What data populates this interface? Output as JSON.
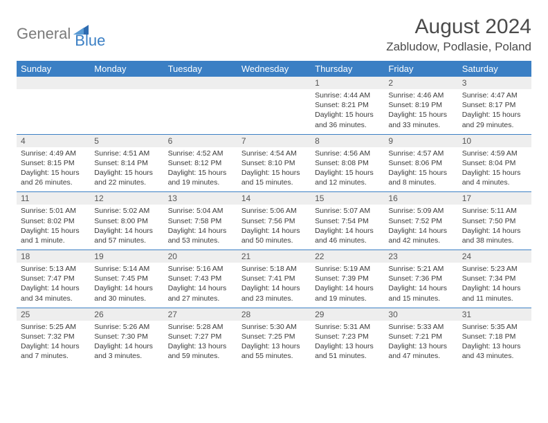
{
  "brand": {
    "part1": "General",
    "part2": "Blue",
    "accent": "#3b7fc4",
    "gray": "#7a7a7a"
  },
  "title": "August 2024",
  "location": "Zabludow, Podlasie, Poland",
  "weekdays": [
    "Sunday",
    "Monday",
    "Tuesday",
    "Wednesday",
    "Thursday",
    "Friday",
    "Saturday"
  ],
  "colors": {
    "header_bg": "#3b7fc4",
    "header_text": "#ffffff",
    "daynum_bg": "#eeeeee",
    "border": "#3b7fc4",
    "body_text": "#3a3a3a"
  },
  "weeks": [
    [
      null,
      null,
      null,
      null,
      {
        "n": "1",
        "sunrise": "4:44 AM",
        "sunset": "8:21 PM",
        "daylight": "15 hours and 36 minutes."
      },
      {
        "n": "2",
        "sunrise": "4:46 AM",
        "sunset": "8:19 PM",
        "daylight": "15 hours and 33 minutes."
      },
      {
        "n": "3",
        "sunrise": "4:47 AM",
        "sunset": "8:17 PM",
        "daylight": "15 hours and 29 minutes."
      }
    ],
    [
      {
        "n": "4",
        "sunrise": "4:49 AM",
        "sunset": "8:15 PM",
        "daylight": "15 hours and 26 minutes."
      },
      {
        "n": "5",
        "sunrise": "4:51 AM",
        "sunset": "8:14 PM",
        "daylight": "15 hours and 22 minutes."
      },
      {
        "n": "6",
        "sunrise": "4:52 AM",
        "sunset": "8:12 PM",
        "daylight": "15 hours and 19 minutes."
      },
      {
        "n": "7",
        "sunrise": "4:54 AM",
        "sunset": "8:10 PM",
        "daylight": "15 hours and 15 minutes."
      },
      {
        "n": "8",
        "sunrise": "4:56 AM",
        "sunset": "8:08 PM",
        "daylight": "15 hours and 12 minutes."
      },
      {
        "n": "9",
        "sunrise": "4:57 AM",
        "sunset": "8:06 PM",
        "daylight": "15 hours and 8 minutes."
      },
      {
        "n": "10",
        "sunrise": "4:59 AM",
        "sunset": "8:04 PM",
        "daylight": "15 hours and 4 minutes."
      }
    ],
    [
      {
        "n": "11",
        "sunrise": "5:01 AM",
        "sunset": "8:02 PM",
        "daylight": "15 hours and 1 minute."
      },
      {
        "n": "12",
        "sunrise": "5:02 AM",
        "sunset": "8:00 PM",
        "daylight": "14 hours and 57 minutes."
      },
      {
        "n": "13",
        "sunrise": "5:04 AM",
        "sunset": "7:58 PM",
        "daylight": "14 hours and 53 minutes."
      },
      {
        "n": "14",
        "sunrise": "5:06 AM",
        "sunset": "7:56 PM",
        "daylight": "14 hours and 50 minutes."
      },
      {
        "n": "15",
        "sunrise": "5:07 AM",
        "sunset": "7:54 PM",
        "daylight": "14 hours and 46 minutes."
      },
      {
        "n": "16",
        "sunrise": "5:09 AM",
        "sunset": "7:52 PM",
        "daylight": "14 hours and 42 minutes."
      },
      {
        "n": "17",
        "sunrise": "5:11 AM",
        "sunset": "7:50 PM",
        "daylight": "14 hours and 38 minutes."
      }
    ],
    [
      {
        "n": "18",
        "sunrise": "5:13 AM",
        "sunset": "7:47 PM",
        "daylight": "14 hours and 34 minutes."
      },
      {
        "n": "19",
        "sunrise": "5:14 AM",
        "sunset": "7:45 PM",
        "daylight": "14 hours and 30 minutes."
      },
      {
        "n": "20",
        "sunrise": "5:16 AM",
        "sunset": "7:43 PM",
        "daylight": "14 hours and 27 minutes."
      },
      {
        "n": "21",
        "sunrise": "5:18 AM",
        "sunset": "7:41 PM",
        "daylight": "14 hours and 23 minutes."
      },
      {
        "n": "22",
        "sunrise": "5:19 AM",
        "sunset": "7:39 PM",
        "daylight": "14 hours and 19 minutes."
      },
      {
        "n": "23",
        "sunrise": "5:21 AM",
        "sunset": "7:36 PM",
        "daylight": "14 hours and 15 minutes."
      },
      {
        "n": "24",
        "sunrise": "5:23 AM",
        "sunset": "7:34 PM",
        "daylight": "14 hours and 11 minutes."
      }
    ],
    [
      {
        "n": "25",
        "sunrise": "5:25 AM",
        "sunset": "7:32 PM",
        "daylight": "14 hours and 7 minutes."
      },
      {
        "n": "26",
        "sunrise": "5:26 AM",
        "sunset": "7:30 PM",
        "daylight": "14 hours and 3 minutes."
      },
      {
        "n": "27",
        "sunrise": "5:28 AM",
        "sunset": "7:27 PM",
        "daylight": "13 hours and 59 minutes."
      },
      {
        "n": "28",
        "sunrise": "5:30 AM",
        "sunset": "7:25 PM",
        "daylight": "13 hours and 55 minutes."
      },
      {
        "n": "29",
        "sunrise": "5:31 AM",
        "sunset": "7:23 PM",
        "daylight": "13 hours and 51 minutes."
      },
      {
        "n": "30",
        "sunrise": "5:33 AM",
        "sunset": "7:21 PM",
        "daylight": "13 hours and 47 minutes."
      },
      {
        "n": "31",
        "sunrise": "5:35 AM",
        "sunset": "7:18 PM",
        "daylight": "13 hours and 43 minutes."
      }
    ]
  ],
  "labels": {
    "sunrise": "Sunrise:",
    "sunset": "Sunset:",
    "daylight": "Daylight:"
  }
}
